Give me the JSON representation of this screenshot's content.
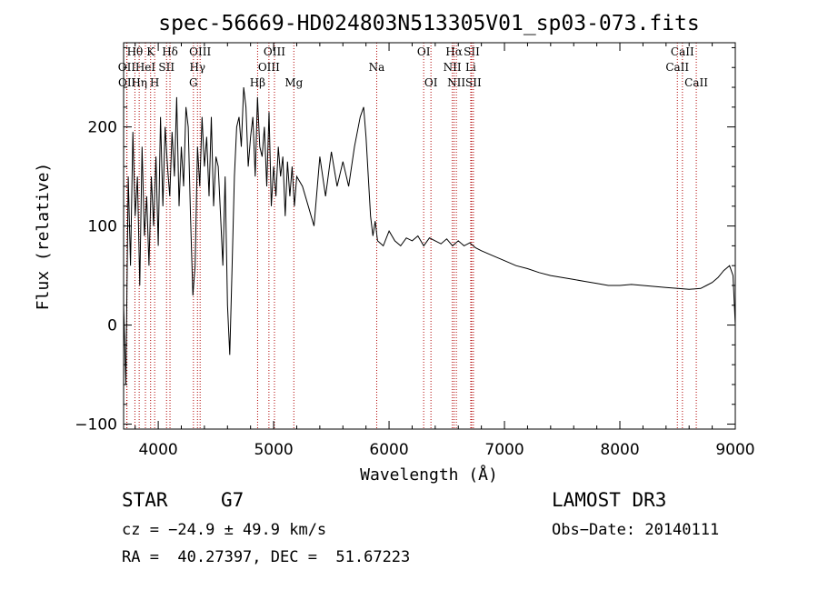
{
  "chart_data": {
    "type": "line",
    "title": "spec-56669-HD024803N513305V01_sp03-073.fits",
    "xlabel": "Wavelength (Å)",
    "ylabel": "Flux (relative)",
    "xlim": [
      3700,
      9000
    ],
    "ylim": [
      -105,
      285
    ],
    "xticks": [
      4000,
      5000,
      6000,
      7000,
      8000,
      9000
    ],
    "yticks": [
      -100,
      0,
      100,
      200
    ],
    "series": [
      {
        "name": "flux",
        "x": [
          3700,
          3720,
          3740,
          3760,
          3780,
          3800,
          3820,
          3840,
          3860,
          3880,
          3900,
          3920,
          3940,
          3960,
          3980,
          4000,
          4020,
          4040,
          4060,
          4080,
          4100,
          4120,
          4140,
          4160,
          4180,
          4200,
          4220,
          4240,
          4260,
          4280,
          4300,
          4320,
          4340,
          4360,
          4380,
          4400,
          4420,
          4440,
          4460,
          4480,
          4500,
          4520,
          4540,
          4560,
          4580,
          4600,
          4620,
          4640,
          4660,
          4680,
          4700,
          4720,
          4740,
          4760,
          4780,
          4800,
          4820,
          4840,
          4860,
          4880,
          4900,
          4920,
          4940,
          4960,
          4980,
          5000,
          5020,
          5040,
          5060,
          5080,
          5100,
          5120,
          5140,
          5160,
          5180,
          5200,
          5250,
          5300,
          5350,
          5400,
          5450,
          5500,
          5550,
          5600,
          5650,
          5700,
          5750,
          5780,
          5800,
          5820,
          5840,
          5860,
          5880,
          5900,
          5950,
          6000,
          6050,
          6100,
          6150,
          6200,
          6250,
          6300,
          6350,
          6400,
          6450,
          6500,
          6550,
          6600,
          6650,
          6700,
          6750,
          6800,
          6900,
          7000,
          7100,
          7200,
          7300,
          7400,
          7500,
          7600,
          7700,
          7800,
          7900,
          8000,
          8100,
          8200,
          8300,
          8400,
          8500,
          8600,
          8700,
          8750,
          8800,
          8850,
          8900,
          8950,
          8980,
          9000
        ],
        "y": [
          20,
          -60,
          150,
          60,
          195,
          110,
          150,
          40,
          180,
          90,
          130,
          60,
          150,
          100,
          170,
          80,
          210,
          120,
          200,
          160,
          130,
          195,
          150,
          230,
          120,
          180,
          140,
          220,
          200,
          110,
          30,
          60,
          180,
          140,
          210,
          160,
          190,
          130,
          210,
          120,
          170,
          160,
          110,
          60,
          150,
          20,
          -30,
          60,
          150,
          200,
          210,
          180,
          240,
          220,
          160,
          190,
          210,
          150,
          230,
          180,
          170,
          200,
          140,
          215,
          120,
          160,
          130,
          180,
          150,
          170,
          110,
          165,
          130,
          160,
          120,
          150,
          140,
          120,
          100,
          170,
          130,
          175,
          140,
          165,
          140,
          180,
          210,
          220,
          190,
          150,
          110,
          90,
          105,
          85,
          80,
          95,
          85,
          80,
          88,
          85,
          90,
          80,
          88,
          85,
          82,
          87,
          80,
          85,
          80,
          83,
          78,
          75,
          70,
          65,
          60,
          57,
          53,
          50,
          48,
          46,
          44,
          42,
          40,
          40,
          41,
          40,
          39,
          38,
          37,
          36,
          37,
          40,
          43,
          48,
          55,
          60,
          50,
          0
        ]
      }
    ],
    "spectral_lines": [
      {
        "label": "Hθ",
        "x": 3798,
        "row": 1
      },
      {
        "label": "OII",
        "x": 3727,
        "row": 2
      },
      {
        "label": "OII",
        "x": 3729,
        "row": 3
      },
      {
        "label": "K",
        "x": 3934,
        "row": 1
      },
      {
        "label": "HeI",
        "x": 3889,
        "row": 2
      },
      {
        "label": "Hη",
        "x": 3835,
        "row": 3
      },
      {
        "label": "Hδ",
        "x": 4102,
        "row": 1
      },
      {
        "label": "SII",
        "x": 4072,
        "row": 2
      },
      {
        "label": "H",
        "x": 3969,
        "row": 3
      },
      {
        "label": "OIII",
        "x": 4363,
        "row": 1
      },
      {
        "label": "Hγ",
        "x": 4340,
        "row": 2
      },
      {
        "label": "G",
        "x": 4305,
        "row": 3
      },
      {
        "label": "OIII",
        "x": 5007,
        "row": 1
      },
      {
        "label": "OIII",
        "x": 4959,
        "row": 2
      },
      {
        "label": "Hβ",
        "x": 4861,
        "row": 3
      },
      {
        "label": "Mg",
        "x": 5175,
        "row": 3
      },
      {
        "label": "Na",
        "x": 5893,
        "row": 2
      },
      {
        "label": "OI",
        "x": 6300,
        "row": 1
      },
      {
        "label": "OI",
        "x": 6363,
        "row": 3
      },
      {
        "label": "Hα",
        "x": 6563,
        "row": 1
      },
      {
        "label": "NII",
        "x": 6548,
        "row": 2
      },
      {
        "label": "NII",
        "x": 6583,
        "row": 3
      },
      {
        "label": "SII",
        "x": 6716,
        "row": 1
      },
      {
        "label": "Li",
        "x": 6708,
        "row": 2
      },
      {
        "label": "SII",
        "x": 6731,
        "row": 3
      },
      {
        "label": "CaII",
        "x": 8542,
        "row": 1
      },
      {
        "label": "CaII",
        "x": 8498,
        "row": 2
      },
      {
        "label": "CaII",
        "x": 8662,
        "row": 3
      }
    ]
  },
  "info": {
    "object_class": "STAR",
    "subclass": "G7",
    "survey": "LAMOST DR3",
    "redshift": "cz = −24.9 ± 49.9 km/s",
    "obs_date": "Obs−Date: 20140111",
    "coords": "RA =  40.27397, DEC =  51.67223"
  }
}
